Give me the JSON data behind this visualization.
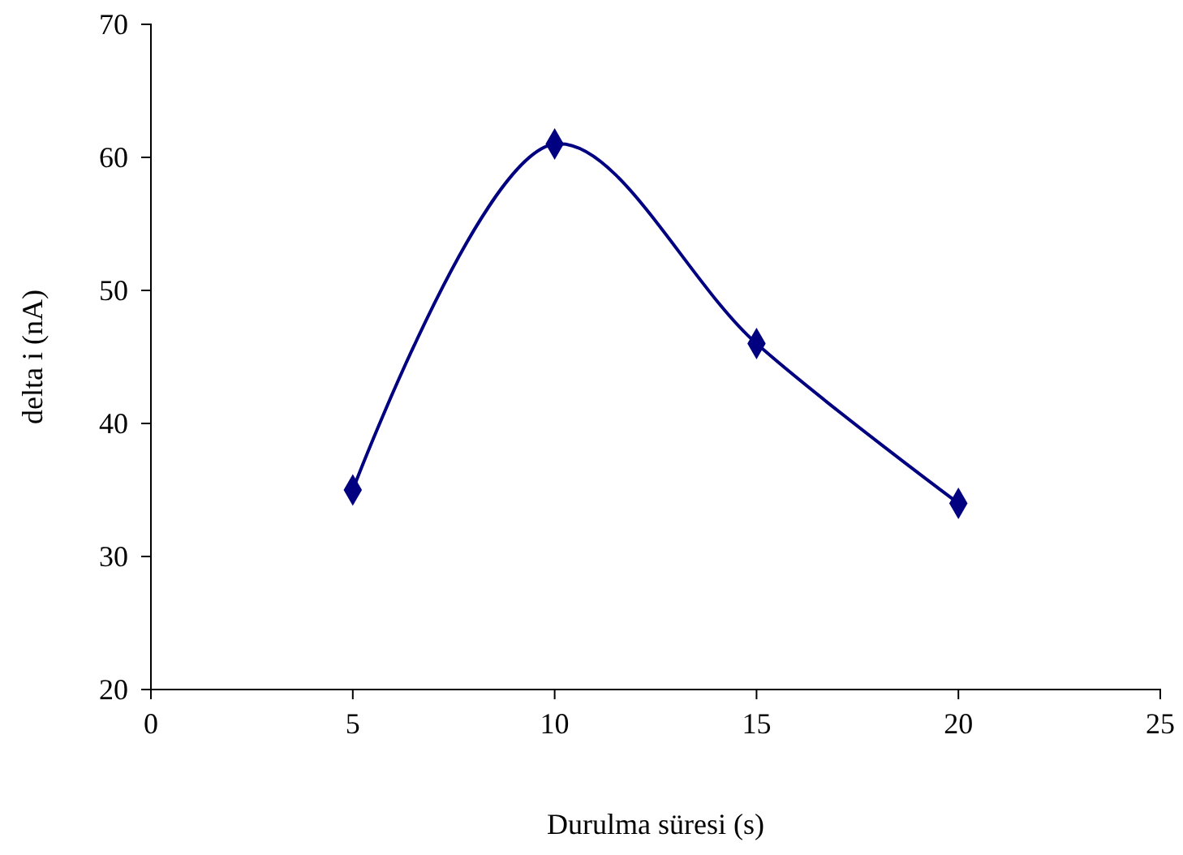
{
  "chart_data": {
    "type": "line",
    "xlabel": "Durulma süresi (s)",
    "ylabel": "delta i (nA)",
    "x": [
      5,
      10,
      15,
      20
    ],
    "series": [
      {
        "color": "#000080",
        "values": [
          35,
          61,
          46,
          34
        ]
      }
    ],
    "xlim": [
      0,
      25
    ],
    "xticks": [
      0,
      5,
      10,
      15,
      20,
      25
    ],
    "ylim": [
      20,
      70
    ],
    "yticks": [
      20,
      30,
      40,
      50,
      60,
      70
    ],
    "grid": false,
    "marker": "diamond",
    "line_style": "solid"
  }
}
